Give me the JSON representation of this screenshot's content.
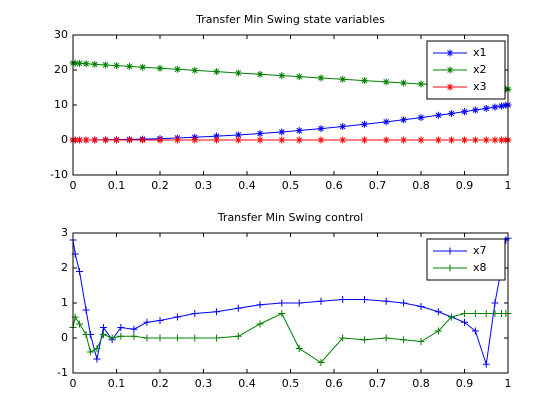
{
  "chart_data": [
    {
      "type": "line",
      "title": "Transfer Min Swing state variables",
      "marker": "*",
      "legend": "northeast",
      "xlim": [
        0,
        1
      ],
      "ylim": [
        -10,
        30
      ],
      "xticks": [
        0,
        0.1,
        0.2,
        0.3,
        0.4,
        0.5,
        0.6,
        0.7,
        0.8,
        0.9,
        1
      ],
      "yticks": [
        -10,
        0,
        10,
        20,
        30
      ],
      "x": [
        0,
        0.005,
        0.015,
        0.03,
        0.05,
        0.075,
        0.1,
        0.13,
        0.16,
        0.2,
        0.24,
        0.28,
        0.33,
        0.38,
        0.43,
        0.48,
        0.52,
        0.57,
        0.62,
        0.67,
        0.72,
        0.76,
        0.8,
        0.84,
        0.87,
        0.9,
        0.925,
        0.95,
        0.97,
        0.985,
        0.995,
        1
      ],
      "series": [
        {
          "name": "x1",
          "color": "#0000ff",
          "values": [
            0,
            0,
            0,
            0.01,
            0.03,
            0.06,
            0.1,
            0.17,
            0.26,
            0.4,
            0.58,
            0.78,
            1.09,
            1.44,
            1.85,
            2.3,
            2.7,
            3.25,
            3.84,
            4.49,
            5.18,
            5.78,
            6.4,
            7.06,
            7.57,
            8.1,
            8.56,
            9.03,
            9.41,
            9.7,
            9.9,
            10
          ]
        },
        {
          "name": "x2",
          "color": "#008000",
          "values": [
            22,
            21.96,
            21.89,
            21.78,
            21.63,
            21.44,
            21.25,
            21.03,
            20.8,
            20.5,
            20.2,
            19.9,
            19.53,
            19.15,
            18.78,
            18.4,
            18.1,
            17.73,
            17.35,
            16.98,
            16.6,
            16.3,
            16,
            15.7,
            15.48,
            15.25,
            15.06,
            14.88,
            14.73,
            14.61,
            14.54,
            14.5
          ]
        },
        {
          "name": "x3",
          "color": "#ff0000",
          "values": [
            0,
            0,
            0,
            0,
            0,
            0,
            0,
            0,
            0,
            0,
            0,
            0,
            0,
            0,
            0,
            0,
            0,
            0,
            0,
            0,
            0,
            0,
            0,
            0,
            0,
            0,
            0,
            0,
            0,
            0,
            0,
            0
          ]
        }
      ]
    },
    {
      "type": "line",
      "title": "Transfer Min Swing control",
      "marker": "+",
      "legend": "northeast",
      "xlim": [
        0,
        1
      ],
      "ylim": [
        -1,
        3
      ],
      "xticks": [
        0,
        0.1,
        0.2,
        0.3,
        0.4,
        0.5,
        0.6,
        0.7,
        0.8,
        0.9,
        1
      ],
      "yticks": [
        -1,
        0,
        1,
        2,
        3
      ],
      "x": [
        0,
        0.005,
        0.015,
        0.03,
        0.04,
        0.055,
        0.07,
        0.09,
        0.11,
        0.14,
        0.17,
        0.2,
        0.24,
        0.28,
        0.33,
        0.38,
        0.43,
        0.48,
        0.52,
        0.57,
        0.62,
        0.67,
        0.72,
        0.76,
        0.8,
        0.84,
        0.87,
        0.9,
        0.925,
        0.95,
        0.97,
        0.985,
        0.995,
        1
      ],
      "series": [
        {
          "name": "x7",
          "color": "#0000ff",
          "values": [
            2.8,
            2.4,
            1.9,
            0.8,
            0.1,
            -0.6,
            0.3,
            -0.05,
            0.3,
            0.25,
            0.45,
            0.5,
            0.6,
            0.7,
            0.75,
            0.85,
            0.95,
            1.0,
            1.0,
            1.05,
            1.1,
            1.1,
            1.05,
            1.0,
            0.9,
            0.75,
            0.6,
            0.45,
            0.2,
            -0.75,
            1.0,
            2.0,
            2.8,
            2.85
          ]
        },
        {
          "name": "x8",
          "color": "#008000",
          "values": [
            0.3,
            0.6,
            0.4,
            0.1,
            -0.4,
            -0.3,
            0.1,
            0,
            0.05,
            0.05,
            0,
            0,
            0,
            0,
            0,
            0.05,
            0.4,
            0.7,
            -0.3,
            -0.7,
            0,
            -0.05,
            0,
            -0.05,
            -0.1,
            0.2,
            0.6,
            0.7,
            0.7,
            0.7,
            0.7,
            0.7,
            0.7,
            0.7
          ]
        }
      ]
    }
  ]
}
